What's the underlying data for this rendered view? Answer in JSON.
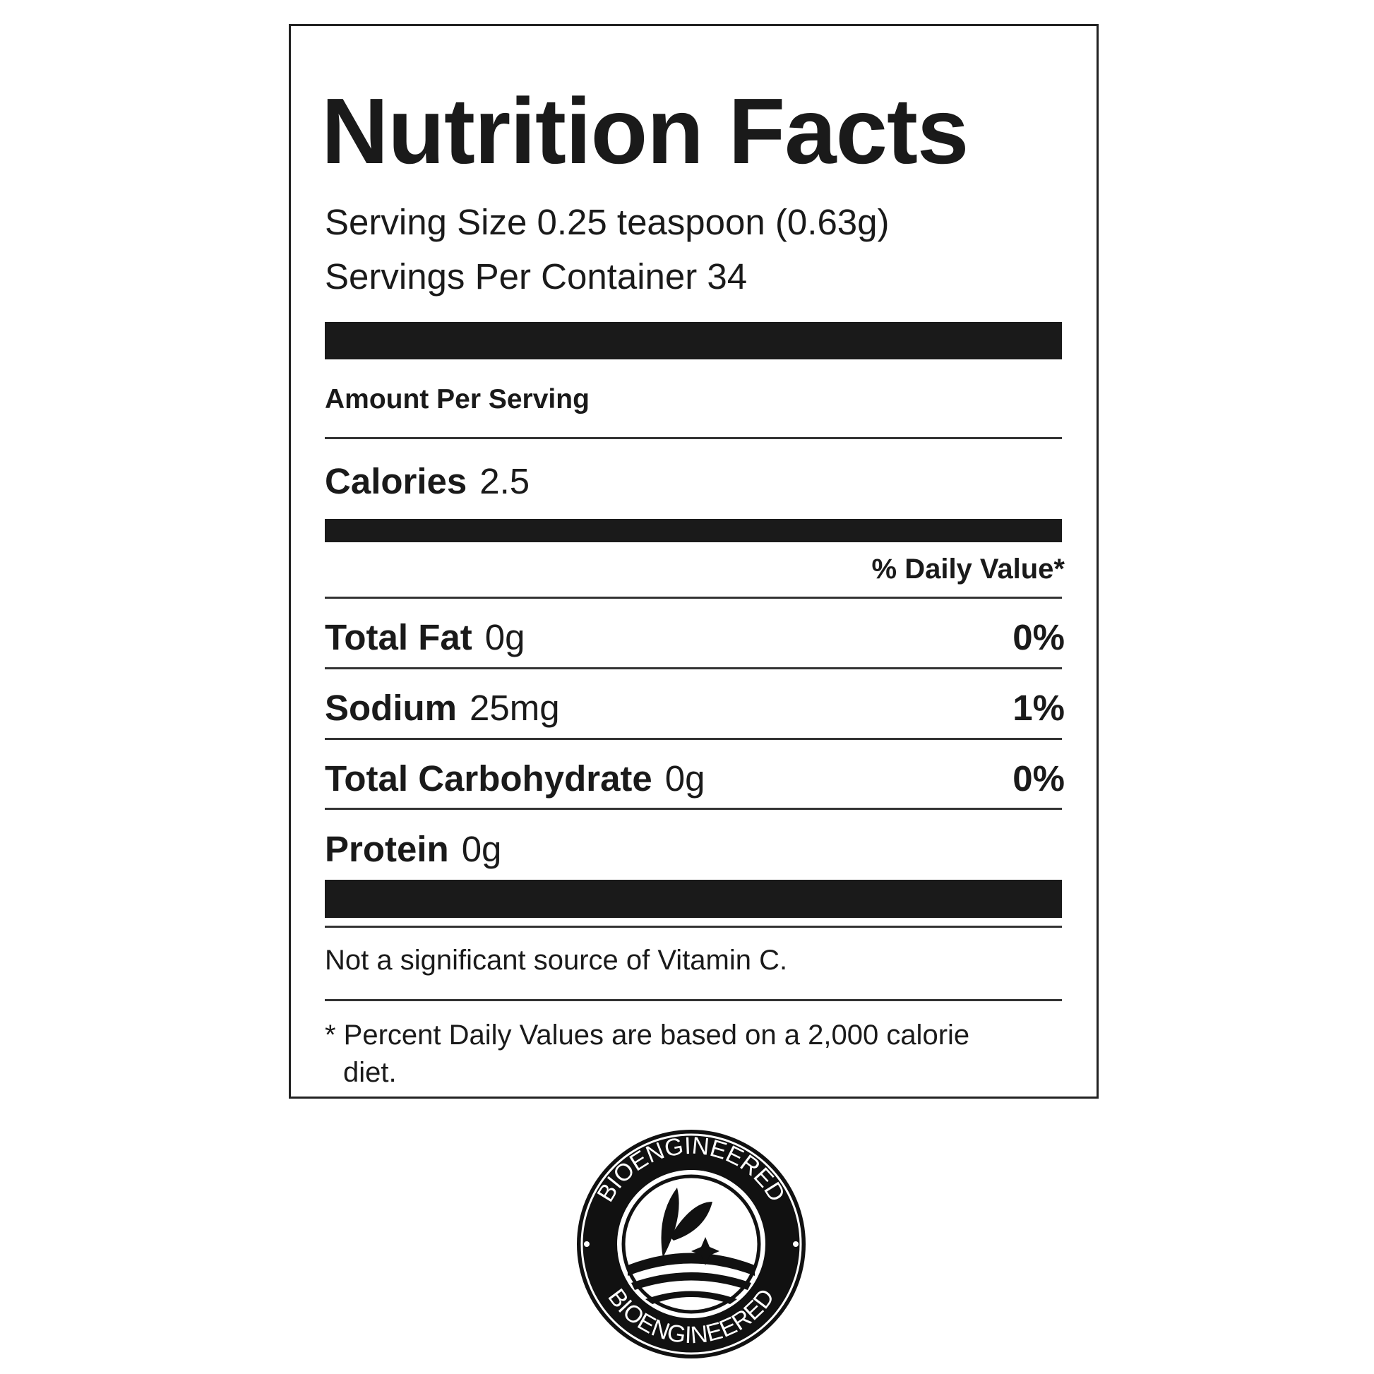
{
  "title": "Nutrition Facts",
  "serving_size": "Serving Size 0.25 teaspoon (0.63g)",
  "servings_per_container": "Servings Per Container 34",
  "amount_per_serving": "Amount Per Serving",
  "calories": {
    "label": "Calories",
    "value": "2.5"
  },
  "daily_value_header": "% Daily Value*",
  "nutrients": [
    {
      "label": "Total Fat",
      "amount": "0g",
      "dv": "0%"
    },
    {
      "label": "Sodium",
      "amount": "25mg",
      "dv": "1%"
    },
    {
      "label": "Total Carbohydrate",
      "amount": "0g",
      "dv": "0%"
    },
    {
      "label": "Protein",
      "amount": "0g",
      "dv": ""
    }
  ],
  "vitamin_note": "Not a significant source of Vitamin C.",
  "footnote_line1": "* Percent Daily Values are based on a 2,000 calorie",
  "footnote_line2": "diet.",
  "logo": {
    "text": "BIOENGINEERED",
    "icon": "bioengineered-seal-icon"
  }
}
